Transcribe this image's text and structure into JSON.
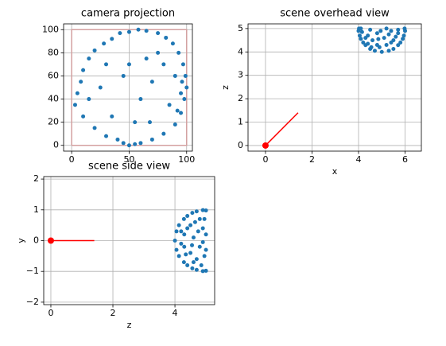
{
  "chart_data": [
    {
      "type": "scatter",
      "title": "camera projection",
      "xlim": [
        -7,
        105
      ],
      "ylim": [
        -5,
        105
      ],
      "xticks": [
        0,
        50,
        100
      ],
      "yticks": [
        0,
        20,
        40,
        60,
        80,
        100
      ],
      "grid": true,
      "series": [
        {
          "style": "line",
          "color": "#d4a0a0",
          "x": [
            0,
            100,
            100,
            0,
            0
          ],
          "y": [
            0,
            0,
            100,
            100,
            0
          ]
        },
        {
          "style": "points",
          "color": "#1f77b4",
          "x": [
            50,
            55,
            60,
            45,
            70,
            80,
            90,
            95,
            98,
            100,
            99,
            97,
            93,
            88,
            82,
            75,
            65,
            58,
            50,
            42,
            35,
            28,
            20,
            15,
            10,
            8,
            5,
            3,
            10,
            20,
            30,
            40,
            60,
            70,
            85,
            90,
            95,
            65,
            45,
            25,
            15,
            35,
            55,
            75,
            80,
            92,
            96,
            50,
            30,
            68
          ],
          "y": [
            0,
            1,
            2,
            2,
            5,
            10,
            18,
            28,
            40,
            50,
            60,
            70,
            80,
            88,
            93,
            97,
            99,
            100,
            98,
            97,
            92,
            88,
            82,
            75,
            65,
            55,
            45,
            35,
            25,
            15,
            8,
            5,
            40,
            55,
            35,
            60,
            45,
            75,
            60,
            50,
            40,
            25,
            20,
            80,
            70,
            30,
            55,
            70,
            70,
            20
          ]
        }
      ]
    },
    {
      "type": "scatter",
      "title": "scene overhead view",
      "xlabel": "x",
      "ylabel": "z",
      "xlim": [
        -0.75,
        6.7
      ],
      "ylim": [
        -0.24,
        5.2
      ],
      "xticks": [
        0,
        2,
        4,
        6
      ],
      "yticks": [
        0,
        1,
        2,
        3,
        4,
        5
      ],
      "grid": true,
      "series": [
        {
          "style": "points",
          "color": "#1f77b4",
          "x": [
            5,
            5.3,
            4.7,
            5.5,
            4.5,
            5.7,
            4.3,
            5.8,
            4.2,
            5.9,
            4.1,
            5.95,
            4.05,
            6,
            4,
            5.98,
            4.02,
            5.2,
            4.8,
            5.5,
            4.6,
            5.1,
            4.4,
            5.7,
            4.8,
            5.4,
            4.5,
            5.4,
            4.9,
            4.3,
            5.3,
            4.15,
            5.7,
            5.2,
            4.1,
            4.55,
            4.4,
            5.6,
            4.85,
            4.95
          ],
          "y": [
            4,
            4.05,
            4.05,
            4.13,
            4.13,
            4.29,
            4.29,
            4.4,
            4.4,
            4.56,
            4.56,
            4.7,
            4.7,
            4.9,
            4.9,
            5,
            5,
            4.3,
            4.3,
            4.5,
            4.5,
            4.6,
            4.7,
            4.8,
            4.8,
            4.9,
            4.95,
            4.4,
            4.2,
            4.6,
            4.75,
            4.85,
            4.95,
            5,
            5,
            4.2,
            4.35,
            4.65,
            4.55,
            4.9
          ]
        },
        {
          "style": "line",
          "color": "#ff0000",
          "x": [
            0,
            1.4
          ],
          "y": [
            0,
            1.4
          ]
        },
        {
          "style": "dot",
          "color": "#ff0000",
          "x": [
            0
          ],
          "y": [
            0
          ]
        }
      ]
    },
    {
      "type": "scatter",
      "title": "scene side view",
      "xlabel": "z",
      "ylabel": "y",
      "xlim": [
        -0.23,
        5.28
      ],
      "ylim": [
        -2.08,
        2.08
      ],
      "xticks": [
        0,
        2,
        4
      ],
      "yticks": [
        {
          "value": -2,
          "label": "−2"
        },
        {
          "value": -1,
          "label": "−1"
        },
        0,
        1,
        2
      ],
      "grid": true,
      "series": [
        {
          "style": "points",
          "color": "#1f77b4",
          "x": [
            4,
            4.05,
            4.05,
            4.13,
            4.13,
            4.29,
            4.29,
            4.4,
            4.4,
            4.56,
            4.56,
            4.7,
            4.7,
            4.9,
            4.9,
            5,
            5,
            4.3,
            4.3,
            4.5,
            4.5,
            4.6,
            4.7,
            4.8,
            4.8,
            4.9,
            4.95,
            4.4,
            4.2,
            4.6,
            4.75,
            4.85,
            4.95,
            5,
            5,
            4.2,
            4.35,
            4.65,
            4.55,
            4.9
          ],
          "y": [
            0,
            0.3,
            -0.3,
            0.5,
            -0.5,
            0.7,
            -0.7,
            0.8,
            -0.8,
            0.9,
            -0.9,
            0.95,
            -0.95,
            0.99,
            -0.99,
            0.98,
            -0.98,
            0.2,
            -0.2,
            0.5,
            -0.4,
            0.1,
            -0.6,
            0.7,
            -0.2,
            0.4,
            -0.5,
            0.4,
            -0.1,
            -0.7,
            0.3,
            -0.8,
            0.7,
            0.2,
            -0.3,
            0.3,
            -0.45,
            0.6,
            -0.15,
            -0.05
          ]
        },
        {
          "style": "line",
          "color": "#ff0000",
          "x": [
            0,
            1.4
          ],
          "y": [
            0,
            0
          ]
        },
        {
          "style": "dot",
          "color": "#ff0000",
          "x": [
            0
          ],
          "y": [
            0
          ]
        }
      ]
    }
  ]
}
